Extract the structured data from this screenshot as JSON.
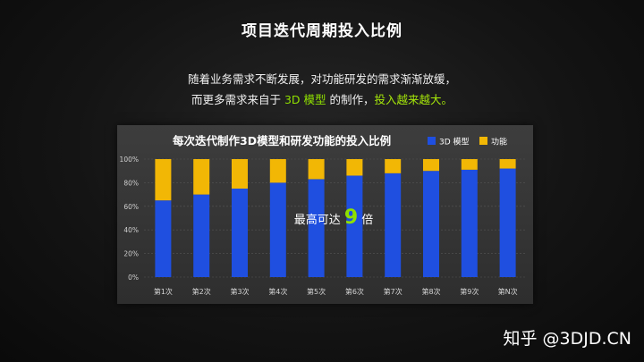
{
  "slide": {
    "title": "项目迭代周期投入比例",
    "intro_line1": "随着业务需求不断发展，对功能研发的需求渐渐放缓，",
    "intro_line2_a": "而更多需求来自于 ",
    "intro_line2_hl1": "3D 模型",
    "intro_line2_b": " 的制作，",
    "intro_line2_hl2": "投入越来越大。"
  },
  "watermark": "知乎 @3DJD.CN",
  "colors": {
    "model": "#1f4fe0",
    "feature": "#f2b705",
    "highlight": "#8fe000"
  },
  "chart_data": {
    "type": "bar",
    "stacked": true,
    "title": "每次迭代制作3D模型和研发功能的投入比例",
    "categories": [
      "第1次",
      "第2次",
      "第3次",
      "第4次",
      "第5次",
      "第6次",
      "第7次",
      "第8次",
      "第9次",
      "第N次"
    ],
    "series": [
      {
        "name": "3D 模型",
        "color": "#1f4fe0",
        "values": [
          65,
          70,
          75,
          80,
          83,
          86,
          88,
          90,
          91,
          92
        ]
      },
      {
        "name": "功能",
        "color": "#f2b705",
        "values": [
          35,
          30,
          25,
          20,
          17,
          14,
          12,
          10,
          9,
          8
        ]
      }
    ],
    "yticks": [
      "0%",
      "20%",
      "40%",
      "60%",
      "80%",
      "100%"
    ],
    "ylim": [
      0,
      100
    ],
    "legend": "top-right",
    "grid": true,
    "annotation": {
      "prefix": "最高可达 ",
      "value": "9",
      "suffix": " 倍"
    }
  }
}
